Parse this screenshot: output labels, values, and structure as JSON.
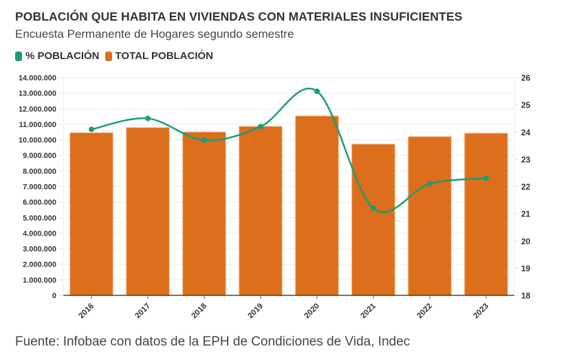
{
  "header": {
    "title": "POBLACIÓN QUE HABITA EN VIVIENDAS CON MATERIALES INSUFICIENTES",
    "subtitle": "Encuesta Permanente de Hogares segundo semestre"
  },
  "legend": [
    {
      "label": "% POBLACIÓN",
      "color": "#1a9c74"
    },
    {
      "label": "TOTAL POBLACIÓN",
      "color": "#dc6e1c"
    }
  ],
  "footer": {
    "source": "Fuente: Infobae con datos de la EPH de Condiciones de Vida, Indec"
  },
  "chart_data": {
    "type": "bar+line",
    "title": "POBLACIÓN QUE HABITA EN VIVIENDAS CON MATERIALES INSUFICIENTES",
    "subtitle": "Encuesta Permanente de Hogares segundo semestre",
    "categories": [
      "2016",
      "2017",
      "2018",
      "2019",
      "2020",
      "2021",
      "2022",
      "2023"
    ],
    "series": [
      {
        "name": "TOTAL POBLACIÓN",
        "type": "bar",
        "axis": "left",
        "color": "#dc6e1c",
        "values": [
          10450000,
          10780000,
          10500000,
          10860000,
          11530000,
          9720000,
          10200000,
          10420000
        ]
      },
      {
        "name": "% POBLACIÓN",
        "type": "line",
        "axis": "right",
        "color": "#1a9c74",
        "values": [
          24.1,
          24.5,
          23.7,
          24.2,
          25.5,
          21.2,
          22.1,
          22.3
        ]
      }
    ],
    "y_left": {
      "range": [
        0,
        14000000
      ],
      "ticks": [
        0,
        1000000,
        2000000,
        3000000,
        4000000,
        5000000,
        6000000,
        7000000,
        8000000,
        9000000,
        10000000,
        11000000,
        12000000,
        13000000,
        14000000
      ],
      "tick_labels": [
        "0",
        "1.000.000",
        "2.000.000",
        "3.000.000",
        "4.000.000",
        "5.000.000",
        "6.000.000",
        "7.000.000",
        "8.000.000",
        "9.000.000",
        "10.000.000",
        "11.000.000",
        "12.000.000",
        "13.000.000",
        "14.000.000"
      ]
    },
    "y_right": {
      "range": [
        18,
        26
      ],
      "ticks": [
        18,
        19,
        20,
        21,
        22,
        23,
        24,
        25,
        26
      ],
      "tick_labels": [
        "18",
        "19",
        "20",
        "21",
        "22",
        "23",
        "24",
        "25",
        "26"
      ]
    },
    "xlabel": "",
    "ylabel": "",
    "grid": true,
    "legend_position": "top-left",
    "source": "Fuente: Infobae con datos de la EPH de Condiciones de Vida, Indec"
  }
}
